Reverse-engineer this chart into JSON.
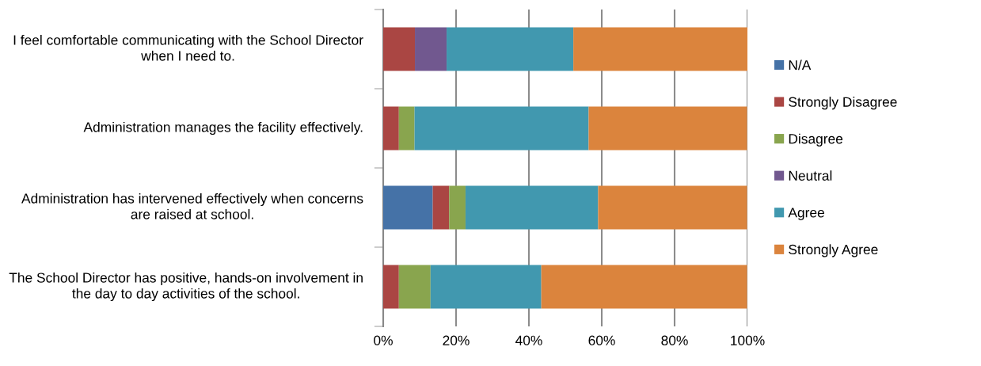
{
  "chart_data": {
    "type": "bar",
    "orientation": "horizontal",
    "stacked": true,
    "categories": [
      "I feel comfortable communicating with the School Director when I need to.",
      "Administration manages the facility effectively.",
      "Administration has intervened effectively when concerns are raised at school.",
      "The School Director has positive, hands-on involvement in the day to day activities of the school."
    ],
    "series": [
      {
        "name": "N/A",
        "color": "#4572a7",
        "values": [
          0,
          0,
          13.6,
          0
        ]
      },
      {
        "name": "Strongly Disagree",
        "color": "#aa4643",
        "values": [
          8.7,
          4.3,
          4.5,
          4.3
        ]
      },
      {
        "name": "Disagree",
        "color": "#89a54e",
        "values": [
          0,
          4.3,
          4.5,
          8.7
        ]
      },
      {
        "name": "Neutral",
        "color": "#71588f",
        "values": [
          8.7,
          0,
          0,
          0
        ]
      },
      {
        "name": "Agree",
        "color": "#4198af",
        "values": [
          34.8,
          47.8,
          36.4,
          30.4
        ]
      },
      {
        "name": "Strongly Agree",
        "color": "#db843d",
        "values": [
          47.8,
          43.5,
          40.9,
          56.5
        ]
      }
    ],
    "xlim": [
      0,
      100
    ],
    "xticks": [
      {
        "value": 0,
        "label": "0%"
      },
      {
        "value": 20,
        "label": "20%"
      },
      {
        "value": 40,
        "label": "40%"
      },
      {
        "value": 60,
        "label": "60%"
      },
      {
        "value": 80,
        "label": "80%"
      },
      {
        "value": 100,
        "label": "100%"
      }
    ],
    "grid": "x",
    "legend": "right"
  }
}
